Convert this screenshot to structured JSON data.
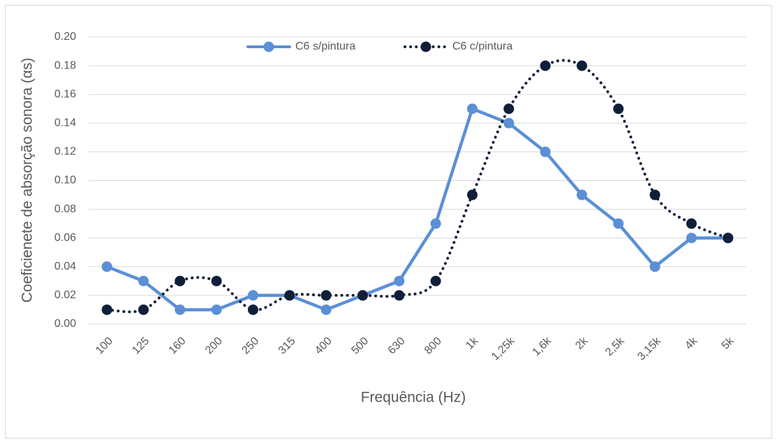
{
  "chart_data": {
    "type": "line",
    "x_label": "Frequência (Hz)",
    "y_label": "Coeficienete de absorção sonora (αs)",
    "categories": [
      "100",
      "125",
      "160",
      "200",
      "250",
      "315",
      "400",
      "500",
      "630",
      "800",
      "1k",
      "1,25k",
      "1,6k",
      "2k",
      "2,5k",
      "3,15k",
      "4k",
      "5k"
    ],
    "series": [
      {
        "name": "C6 s/pintura",
        "color": "#5b8fd6",
        "style": "solid",
        "values": [
          0.04,
          0.03,
          0.01,
          0.01,
          0.02,
          0.02,
          0.01,
          0.02,
          0.03,
          0.07,
          0.15,
          0.14,
          0.12,
          0.09,
          0.07,
          0.04,
          0.06,
          0.06
        ]
      },
      {
        "name": "C6 c/pintura",
        "color": "#0f1f3a",
        "style": "dotted",
        "values": [
          0.01,
          0.01,
          0.03,
          0.03,
          0.01,
          0.02,
          0.02,
          0.02,
          0.02,
          0.03,
          0.09,
          0.15,
          0.18,
          0.18,
          0.15,
          0.09,
          0.07,
          0.06
        ]
      }
    ],
    "ylim": [
      0,
      0.2
    ],
    "yticks": [
      {
        "value": 0,
        "label": "0.00"
      },
      {
        "value": 0.02,
        "label": "0.02"
      },
      {
        "value": 0.04,
        "label": "0.04"
      },
      {
        "value": 0.06,
        "label": "0.06"
      },
      {
        "value": 0.08,
        "label": "0.08"
      },
      {
        "value": 0.1,
        "label": "0.10"
      },
      {
        "value": 0.12,
        "label": "0.12"
      },
      {
        "value": 0.14,
        "label": "0.14"
      },
      {
        "value": 0.16,
        "label": "0.16"
      },
      {
        "value": 0.18,
        "label": "0.18"
      },
      {
        "value": 0.2,
        "label": "0.20"
      }
    ],
    "grid": true,
    "legend": "top"
  }
}
